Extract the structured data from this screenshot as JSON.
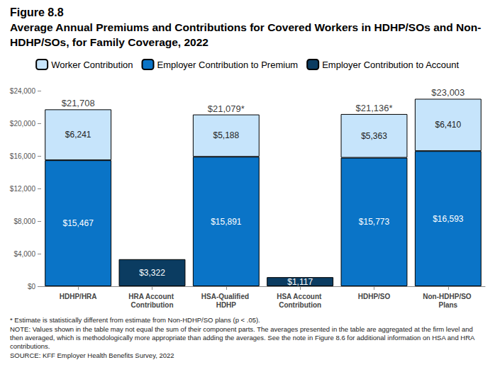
{
  "chart_data": {
    "type": "bar",
    "figure_label": "Figure 8.8",
    "title": "Average Annual Premiums and Contributions for Covered Workers in HDHP/SOs and Non-HDHP/SOs, for Family Coverage, 2022",
    "categories": [
      "HDHP/HRA",
      "HRA Account Contribution",
      "HSA-Qualified HDHP",
      "HSA Account Contribution",
      "HDHP/SO",
      "Non-HDHP/SO Plans"
    ],
    "series": [
      {
        "name": "Worker Contribution",
        "color": "#c6e4fb",
        "values": [
          6241,
          null,
          5188,
          null,
          5363,
          6410
        ],
        "value_labels": [
          "$6,241",
          null,
          "$5,188",
          null,
          "$5,363",
          "$6,410"
        ]
      },
      {
        "name": "Employer Contribution to Premium",
        "color": "#0a74c7",
        "values": [
          15467,
          null,
          15891,
          null,
          15773,
          16593
        ],
        "value_labels": [
          "$15,467",
          null,
          "$15,891",
          null,
          "$15,773",
          "$16,593"
        ]
      },
      {
        "name": "Employer Contribution to Account",
        "color": "#0b3c61",
        "values": [
          null,
          3322,
          null,
          1117,
          null,
          null
        ],
        "value_labels": [
          null,
          "$3,322",
          null,
          "$1,117",
          null,
          null
        ]
      }
    ],
    "totals": [
      21708,
      null,
      21079,
      null,
      21136,
      23003
    ],
    "total_labels": [
      "$21,708",
      null,
      "$21,079*",
      null,
      "$21,136*",
      "$23,003"
    ],
    "stacked": true,
    "data_labels": true,
    "grid": false,
    "legend": "top",
    "ylim": [
      0,
      24000
    ],
    "yticks": [
      {
        "value": 0,
        "label": "$0"
      },
      {
        "value": 4000,
        "label": "$4,000"
      },
      {
        "value": 8000,
        "label": "$8,000"
      },
      {
        "value": 12000,
        "label": "$12,000"
      },
      {
        "value": 16000,
        "label": "$16,000"
      },
      {
        "value": 20000,
        "label": "$20,000"
      },
      {
        "value": 24000,
        "label": "$24,000"
      }
    ],
    "notes": [
      "* Estimate is statistically different from estimate from Non-HDHP/SO plans (p < .05).",
      "NOTE: Values shown in the table may not equal the sum of their component parts. The averages presented in the table are aggregated at the firm level and then averaged, which is methodologically more appropriate than adding the averages. See the note in Figure 8.6 for additional information on HSA and HRA contributions.",
      "SOURCE: KFF Employer Health Benefits Survey, 2022"
    ]
  }
}
